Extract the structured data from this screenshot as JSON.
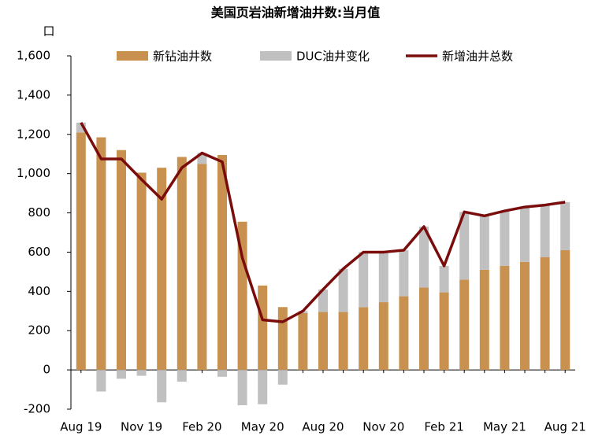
{
  "chart_data": {
    "type": "bar-line",
    "title": "美国页岩油新增油井数:当月值",
    "y_unit": "口",
    "categories": [
      "Aug 19",
      null,
      null,
      "Nov 19",
      null,
      null,
      "Feb 20",
      null,
      null,
      "May 20",
      null,
      null,
      "Aug 20",
      null,
      null,
      "Nov 20",
      null,
      null,
      "Feb 21",
      null,
      null,
      "May 21",
      null,
      null,
      "Aug 21"
    ],
    "series": [
      {
        "name": "新钻油井数",
        "color": "#c8914f",
        "kind": "bar",
        "values": [
          1210,
          1185,
          1120,
          1005,
          1030,
          1085,
          1050,
          1095,
          755,
          430,
          320,
          290,
          295,
          295,
          320,
          345,
          375,
          420,
          395,
          460,
          510,
          530,
          550,
          575,
          610
        ]
      },
      {
        "name": "DUC油井变化",
        "color": "#c0c0c0",
        "kind": "bar",
        "values": [
          50,
          -110,
          -45,
          -30,
          -165,
          -60,
          55,
          -35,
          -180,
          -175,
          -75,
          10,
          115,
          220,
          280,
          255,
          235,
          310,
          135,
          345,
          275,
          280,
          280,
          265,
          245
        ]
      },
      {
        "name": "新增油井总数",
        "color": "#7a0c0c",
        "kind": "line",
        "values": [
          1260,
          1075,
          1075,
          970,
          870,
          1030,
          1105,
          1060,
          570,
          255,
          245,
          300,
          410,
          515,
          600,
          600,
          610,
          730,
          530,
          805,
          785,
          810,
          830,
          840,
          855
        ]
      }
    ],
    "ylim": [
      -200,
      1600
    ],
    "yticks": [
      -200,
      0,
      200,
      400,
      600,
      800,
      {
        "value": 1000,
        "label": "1,000"
      },
      {
        "value": 1200,
        "label": "1,200"
      },
      {
        "value": 1400,
        "label": "1,400"
      },
      {
        "value": 1600,
        "label": "1,600"
      }
    ],
    "grid": false,
    "legend": "top"
  }
}
